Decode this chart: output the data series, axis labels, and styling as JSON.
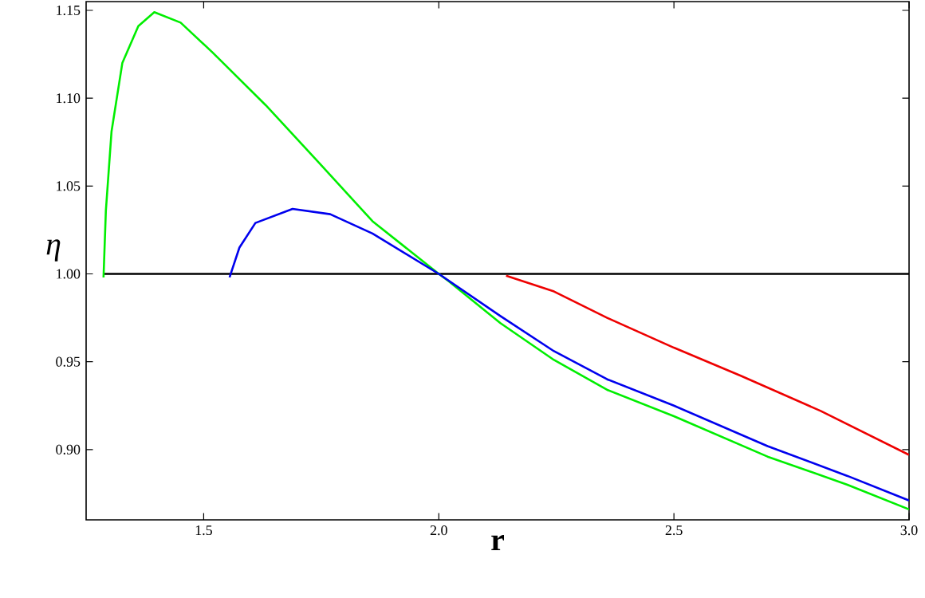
{
  "chart_data": {
    "type": "line",
    "xlabel": "r",
    "ylabel": "η",
    "xlim": [
      1.25,
      3.0
    ],
    "ylim": [
      0.86,
      1.155
    ],
    "xticks": [
      {
        "value": 1.5,
        "label": "1.5"
      },
      {
        "value": 2.0,
        "label": "2.0"
      },
      {
        "value": 2.5,
        "label": "2.5"
      },
      {
        "value": 3.0,
        "label": "3.0"
      }
    ],
    "yticks": [
      {
        "value": 0.9,
        "label": "0.90"
      },
      {
        "value": 0.95,
        "label": "0.95"
      },
      {
        "value": 1.0,
        "label": "1.00"
      },
      {
        "value": 1.05,
        "label": "1.05"
      },
      {
        "value": 1.1,
        "label": "1.10"
      },
      {
        "value": 1.15,
        "label": "1.15"
      }
    ],
    "grid": false,
    "marker": "none",
    "line_style": "solid",
    "series": [
      {
        "color": "#000000",
        "x": [
          1.287,
          3.0
        ],
        "values": [
          1.0,
          1.0
        ]
      },
      {
        "color": "#00ee00",
        "x": [
          1.287,
          1.292,
          1.304,
          1.327,
          1.361,
          1.395,
          1.451,
          1.519,
          1.632,
          1.746,
          1.859,
          2.0,
          2.02,
          2.131,
          2.245,
          2.358,
          2.5,
          2.699,
          2.869,
          3.0
        ],
        "values": [
          0.998,
          1.036,
          1.081,
          1.12,
          1.141,
          1.149,
          1.143,
          1.126,
          1.096,
          1.063,
          1.03,
          1.0,
          0.996,
          0.972,
          0.951,
          0.934,
          0.919,
          0.896,
          0.88,
          0.866
        ]
      },
      {
        "color": "#0000ee",
        "x": [
          1.555,
          1.576,
          1.61,
          1.689,
          1.769,
          1.859,
          2.0,
          2.131,
          2.245,
          2.358,
          2.5,
          2.699,
          2.869,
          3.0
        ],
        "values": [
          0.998,
          1.015,
          1.029,
          1.037,
          1.034,
          1.023,
          1.0,
          0.976,
          0.956,
          0.94,
          0.925,
          0.902,
          0.885,
          0.871
        ]
      },
      {
        "color": "#ee0000",
        "x": [
          2.143,
          2.245,
          2.358,
          2.5,
          2.642,
          2.812,
          3.0
        ],
        "values": [
          0.999,
          0.99,
          0.975,
          0.958,
          0.942,
          0.922,
          0.897
        ]
      }
    ]
  }
}
